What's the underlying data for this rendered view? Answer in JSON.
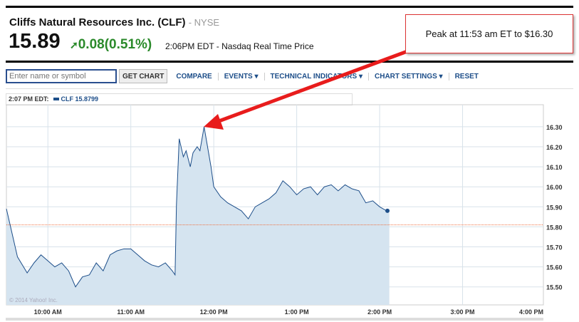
{
  "header": {
    "company": "Cliffs Natural Resources Inc. (CLF)",
    "exchange": "- NYSE",
    "price": "15.89",
    "change": "0.08",
    "change_pct": "(0.51%)",
    "change_color": "#2b8a2b",
    "quote_time": "2:06PM EDT - Nasdaq Real Time Price"
  },
  "toolbar": {
    "search_placeholder": "Enter name or symbol",
    "get_chart": "GET CHART",
    "items": [
      "COMPARE",
      "EVENTS ▾",
      "TECHNICAL INDICATORS ▾",
      "CHART SETTINGS ▾",
      "RESET"
    ]
  },
  "legend": {
    "time": "2:07 PM EDT:",
    "series": "CLF 15.8799"
  },
  "annotation": {
    "text": "Peak at 11:53 am ET to $16.30",
    "arrow_color": "#e81c1c"
  },
  "copyright": "© 2014 Yahoo! Inc.",
  "chart_data": {
    "type": "area",
    "series": [
      {
        "name": "CLF",
        "color": "#1d4e89",
        "fill": "#d5e4f0",
        "x": [
          "9:30",
          "9:33",
          "9:38",
          "9:45",
          "9:50",
          "9:55",
          "10:00",
          "10:05",
          "10:10",
          "10:15",
          "10:20",
          "10:25",
          "10:30",
          "10:35",
          "10:40",
          "10:45",
          "10:50",
          "10:55",
          "11:00",
          "11:05",
          "11:10",
          "11:15",
          "11:20",
          "11:25",
          "11:30",
          "11:32",
          "11:33",
          "11:35",
          "11:38",
          "11:40",
          "11:43",
          "11:45",
          "11:48",
          "11:50",
          "11:53",
          "11:55",
          "11:58",
          "12:00",
          "12:05",
          "12:10",
          "12:15",
          "12:20",
          "12:25",
          "12:30",
          "12:35",
          "12:40",
          "12:45",
          "12:50",
          "12:55",
          "13:00",
          "13:05",
          "13:10",
          "13:15",
          "13:20",
          "13:25",
          "13:30",
          "13:35",
          "13:40",
          "13:45",
          "13:50",
          "13:55",
          "14:00",
          "14:05",
          "14:07"
        ],
        "values": [
          15.89,
          15.8,
          15.65,
          15.57,
          15.62,
          15.66,
          15.63,
          15.6,
          15.62,
          15.58,
          15.5,
          15.55,
          15.56,
          15.62,
          15.58,
          15.66,
          15.68,
          15.69,
          15.69,
          15.66,
          15.63,
          15.61,
          15.6,
          15.62,
          15.58,
          15.56,
          15.91,
          16.24,
          16.15,
          16.18,
          16.1,
          16.17,
          16.2,
          16.18,
          16.3,
          16.22,
          16.1,
          16.0,
          15.95,
          15.92,
          15.9,
          15.88,
          15.84,
          15.9,
          15.92,
          15.94,
          15.97,
          16.03,
          16.0,
          15.96,
          15.99,
          16.0,
          15.96,
          16.0,
          16.01,
          15.98,
          16.01,
          15.99,
          15.98,
          15.92,
          15.93,
          15.9,
          15.88,
          15.88
        ]
      }
    ],
    "previous_close": 15.81,
    "xticks": [
      "10:00 AM",
      "11:00 AM",
      "12:00 PM",
      "1:00 PM",
      "2:00 PM",
      "3:00 PM",
      "4:00 PM"
    ],
    "yticks": [
      "16.30",
      "16.20",
      "16.10",
      "16.00",
      "15.90",
      "15.80",
      "15.70",
      "15.60",
      "15.50"
    ],
    "xlim": [
      "9:30",
      "16:00"
    ],
    "ylim": [
      15.41,
      16.41
    ],
    "grid": true
  }
}
